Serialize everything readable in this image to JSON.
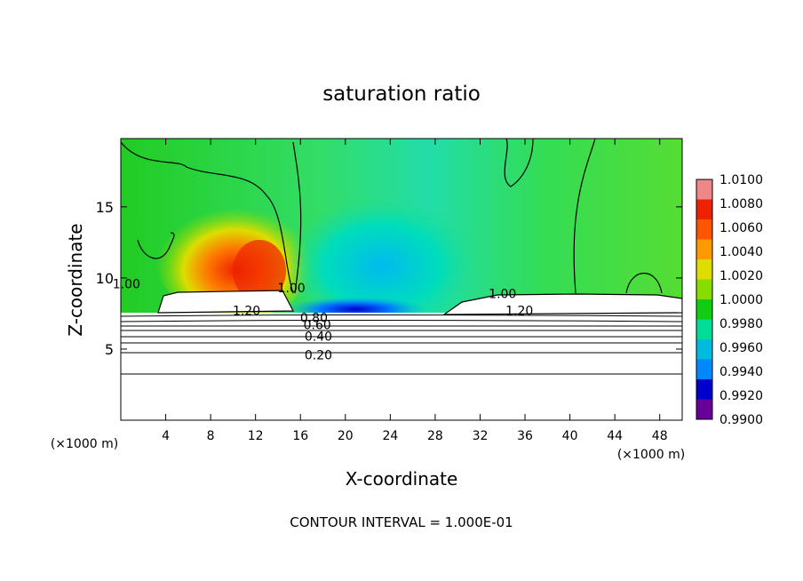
{
  "chart_data": {
    "type": "heatmap",
    "title": "saturation ratio",
    "xlabel": "X-coordinate",
    "ylabel": "Z-coordinate",
    "x_unit_left": "(×1000 m)",
    "x_unit_right": "(×1000 m)",
    "xlim": [
      0,
      50
    ],
    "ylim": [
      0,
      19.8
    ],
    "x_ticks": [
      "4",
      "8",
      "12",
      "16",
      "20",
      "24",
      "28",
      "32",
      "36",
      "40",
      "44",
      "48"
    ],
    "x_tick_values": [
      4,
      8,
      12,
      16,
      20,
      24,
      28,
      32,
      36,
      40,
      44,
      48
    ],
    "y_ticks": [
      "5",
      "10",
      "15"
    ],
    "y_tick_values": [
      5,
      10,
      15
    ],
    "footer": "CONTOUR INTERVAL = 1.000E-01",
    "contour_labels": [
      {
        "text": "1.20",
        "x": 11.2,
        "y": 7.7
      },
      {
        "text": "1.20",
        "x": 35.5,
        "y": 7.7
      },
      {
        "text": "1.00",
        "x": 34.0,
        "y": 8.9
      },
      {
        "text": "1.00",
        "x": 15.2,
        "y": 9.3
      },
      {
        "text": "1.00",
        "x": 0.5,
        "y": 9.6
      },
      {
        "text": "0.80",
        "x": 17.2,
        "y": 7.2
      },
      {
        "text": "0.60",
        "x": 17.5,
        "y": 6.7
      },
      {
        "text": "0.40",
        "x": 17.6,
        "y": 5.9
      },
      {
        "text": "0.20",
        "x": 17.6,
        "y": 4.6
      }
    ],
    "colorbar": {
      "labels": [
        "1.0100",
        "1.0080",
        "1.0060",
        "1.0040",
        "1.0020",
        "1.0000",
        "0.9980",
        "0.9960",
        "0.9940",
        "0.9920",
        "0.9900"
      ],
      "colors": [
        "#ee8888",
        "#ee2200",
        "#ff5500",
        "#ff9900",
        "#dddd00",
        "#88dd00",
        "#11cc11",
        "#00dd99",
        "#00bbdd",
        "#0088ff",
        "#0000cc",
        "#660099"
      ]
    }
  }
}
